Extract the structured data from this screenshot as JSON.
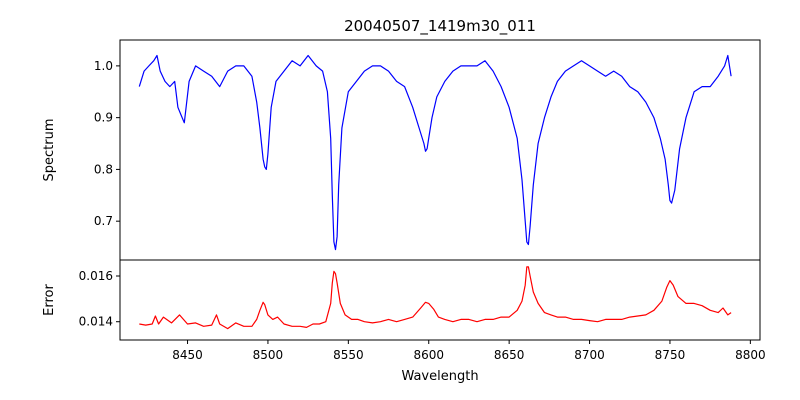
{
  "chart_data": {
    "type": "line",
    "title": "20040507_1419m30_011",
    "xlabel": "Wavelength",
    "xlim": [
      8408,
      8806
    ],
    "xticks": [
      8450,
      8500,
      8550,
      8600,
      8650,
      8700,
      8750,
      8800
    ],
    "grid": false,
    "legend": "none",
    "panels": [
      {
        "ylabel": "Spectrum",
        "ylim": [
          0.625,
          1.05
        ],
        "yticks": [
          0.7,
          0.8,
          0.9,
          1.0
        ],
        "ytick_labels": [
          "0.7",
          "0.8",
          "0.9",
          "1.0"
        ],
        "series": [
          {
            "color": "#0000ff",
            "x": [
              8420,
              8423,
              8426,
              8429,
              8431,
              8433,
              8436,
              8439,
              8442,
              8444,
              8446,
              8448,
              8451,
              8455,
              8460,
              8465,
              8470,
              8475,
              8480,
              8485,
              8490,
              8493,
              8495,
              8497,
              8498,
              8499,
              8500,
              8502,
              8505,
              8510,
              8515,
              8520,
              8525,
              8530,
              8534,
              8537,
              8539,
              8540,
              8541,
              8542,
              8543,
              8544,
              8546,
              8550,
              8555,
              8560,
              8565,
              8570,
              8575,
              8580,
              8585,
              8590,
              8594,
              8597,
              8598,
              8599,
              8600,
              8602,
              8605,
              8610,
              8615,
              8620,
              8625,
              8630,
              8635,
              8640,
              8645,
              8650,
              8655,
              8658,
              8660,
              8661,
              8662,
              8663,
              8665,
              8668,
              8672,
              8676,
              8680,
              8685,
              8690,
              8695,
              8700,
              8705,
              8710,
              8715,
              8720,
              8725,
              8730,
              8735,
              8740,
              8744,
              8747,
              8749,
              8750,
              8751,
              8753,
              8756,
              8760,
              8765,
              8770,
              8775,
              8780,
              8784,
              8786,
              8788
            ],
            "y": [
              0.96,
              0.99,
              1.0,
              1.01,
              1.02,
              0.99,
              0.97,
              0.96,
              0.97,
              0.92,
              0.905,
              0.89,
              0.97,
              1.0,
              0.99,
              0.98,
              0.96,
              0.99,
              1.0,
              1.0,
              0.98,
              0.93,
              0.88,
              0.82,
              0.805,
              0.8,
              0.83,
              0.92,
              0.97,
              0.99,
              1.01,
              1.0,
              1.02,
              1.0,
              0.99,
              0.95,
              0.86,
              0.75,
              0.66,
              0.645,
              0.67,
              0.77,
              0.88,
              0.95,
              0.97,
              0.99,
              1.0,
              1.0,
              0.99,
              0.97,
              0.96,
              0.92,
              0.88,
              0.85,
              0.835,
              0.84,
              0.86,
              0.9,
              0.94,
              0.97,
              0.99,
              1.0,
              1.0,
              1.0,
              1.01,
              0.99,
              0.96,
              0.92,
              0.86,
              0.78,
              0.7,
              0.66,
              0.655,
              0.69,
              0.77,
              0.85,
              0.9,
              0.94,
              0.97,
              0.99,
              1.0,
              1.01,
              1.0,
              0.99,
              0.98,
              0.99,
              0.98,
              0.96,
              0.95,
              0.93,
              0.9,
              0.86,
              0.82,
              0.77,
              0.74,
              0.735,
              0.76,
              0.84,
              0.9,
              0.95,
              0.96,
              0.96,
              0.98,
              1.0,
              1.02,
              0.98
            ]
          }
        ]
      },
      {
        "ylabel": "Error",
        "ylim": [
          0.0132,
          0.0167
        ],
        "yticks": [
          0.014,
          0.016
        ],
        "ytick_labels": [
          "0.014",
          "0.016"
        ],
        "series": [
          {
            "color": "#ff0000",
            "x": [
              8420,
              8424,
              8428,
              8430,
              8432,
              8435,
              8440,
              8445,
              8450,
              8455,
              8460,
              8465,
              8468,
              8470,
              8475,
              8480,
              8485,
              8490,
              8493,
              8495,
              8497,
              8498,
              8500,
              8503,
              8506,
              8510,
              8515,
              8520,
              8524,
              8528,
              8532,
              8536,
              8539,
              8540,
              8541,
              8542,
              8543,
              8545,
              8548,
              8552,
              8556,
              8560,
              8565,
              8570,
              8575,
              8580,
              8585,
              8590,
              8595,
              8598,
              8600,
              8603,
              8606,
              8610,
              8615,
              8620,
              8625,
              8630,
              8635,
              8640,
              8645,
              8650,
              8655,
              8658,
              8660,
              8661,
              8662,
              8663,
              8665,
              8668,
              8672,
              8676,
              8680,
              8685,
              8690,
              8695,
              8700,
              8705,
              8710,
              8715,
              8720,
              8725,
              8730,
              8735,
              8740,
              8745,
              8748,
              8750,
              8752,
              8755,
              8760,
              8765,
              8770,
              8775,
              8780,
              8783,
              8786,
              8788
            ],
            "y": [
              0.0139,
              0.01385,
              0.0139,
              0.01425,
              0.0139,
              0.0142,
              0.01395,
              0.0143,
              0.0139,
              0.01395,
              0.0138,
              0.01385,
              0.0143,
              0.0139,
              0.0137,
              0.01395,
              0.0138,
              0.0138,
              0.0141,
              0.0145,
              0.01485,
              0.01475,
              0.0143,
              0.0141,
              0.0142,
              0.0139,
              0.0138,
              0.0138,
              0.01375,
              0.0139,
              0.0139,
              0.014,
              0.0148,
              0.0157,
              0.0162,
              0.0161,
              0.0157,
              0.0148,
              0.0143,
              0.0141,
              0.0141,
              0.014,
              0.01395,
              0.014,
              0.0141,
              0.014,
              0.0141,
              0.0142,
              0.0146,
              0.01485,
              0.0148,
              0.01455,
              0.0142,
              0.0141,
              0.014,
              0.0141,
              0.0141,
              0.014,
              0.0141,
              0.0141,
              0.0142,
              0.0142,
              0.0145,
              0.0149,
              0.0156,
              0.0164,
              0.0164,
              0.016,
              0.0153,
              0.0148,
              0.0144,
              0.0143,
              0.0142,
              0.0142,
              0.0141,
              0.0141,
              0.01405,
              0.014,
              0.0141,
              0.0141,
              0.0141,
              0.0142,
              0.01425,
              0.0143,
              0.0145,
              0.0149,
              0.0155,
              0.0158,
              0.0156,
              0.0151,
              0.0148,
              0.0148,
              0.0147,
              0.0145,
              0.0144,
              0.0146,
              0.0143,
              0.0144
            ]
          }
        ]
      }
    ]
  }
}
